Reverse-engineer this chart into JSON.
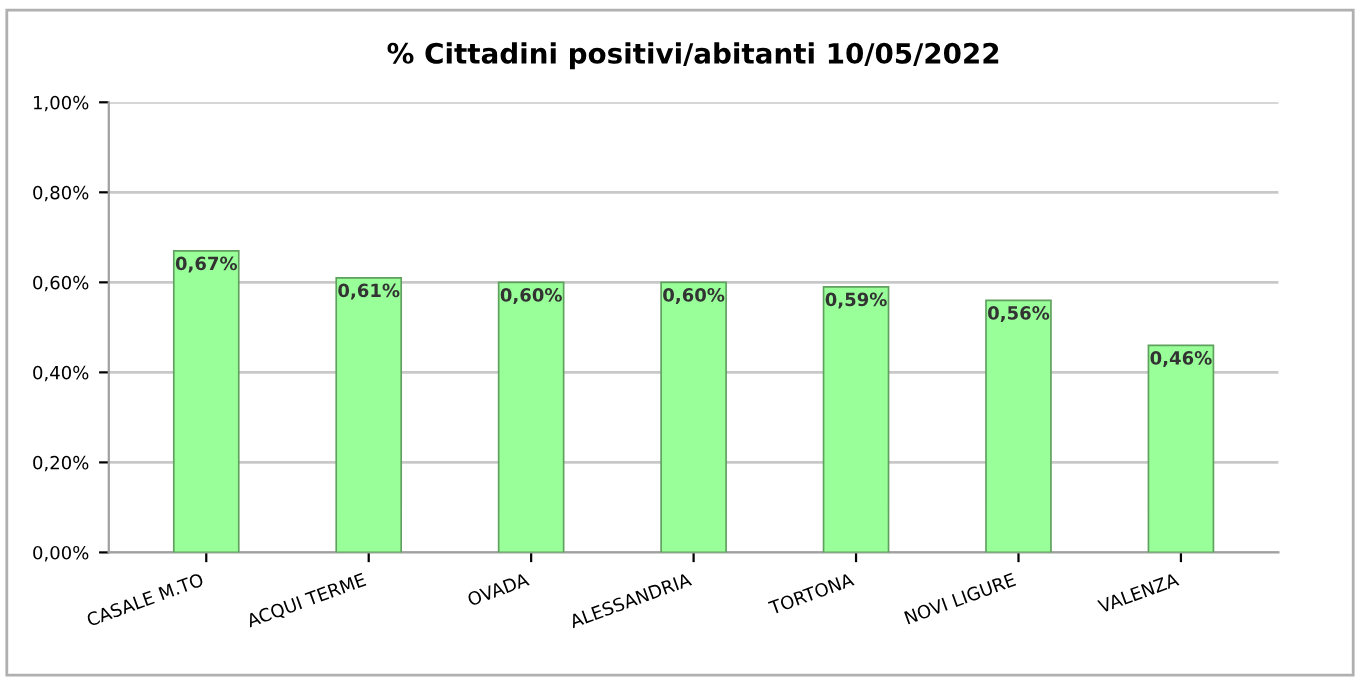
{
  "chart_data": {
    "type": "bar",
    "title": "% Cittadini positivi/abitanti 10/05/2022",
    "categories": [
      "CASALE M.TO",
      "ACQUI TERME",
      "OVADA",
      "ALESSANDRIA",
      "TORTONA",
      "NOVI LIGURE",
      "VALENZA"
    ],
    "values": [
      0.67,
      0.61,
      0.6,
      0.6,
      0.59,
      0.56,
      0.46
    ],
    "value_labels": [
      "0,67%",
      "0,61%",
      "0,60%",
      "0,60%",
      "0,59%",
      "0,56%",
      "0,46%"
    ],
    "color": "#99ff99",
    "ylim": [
      0,
      1.0
    ],
    "yticks": [
      {
        "value": 0,
        "label": "0,00%"
      },
      {
        "value": 0.2,
        "label": "0,20%"
      },
      {
        "value": 0.4,
        "label": "0,40%"
      },
      {
        "value": 0.6,
        "label": "0,60%"
      },
      {
        "value": 0.8,
        "label": "0,80%"
      },
      {
        "value": 1.0,
        "label": "1,00%"
      }
    ],
    "grid": "y"
  }
}
